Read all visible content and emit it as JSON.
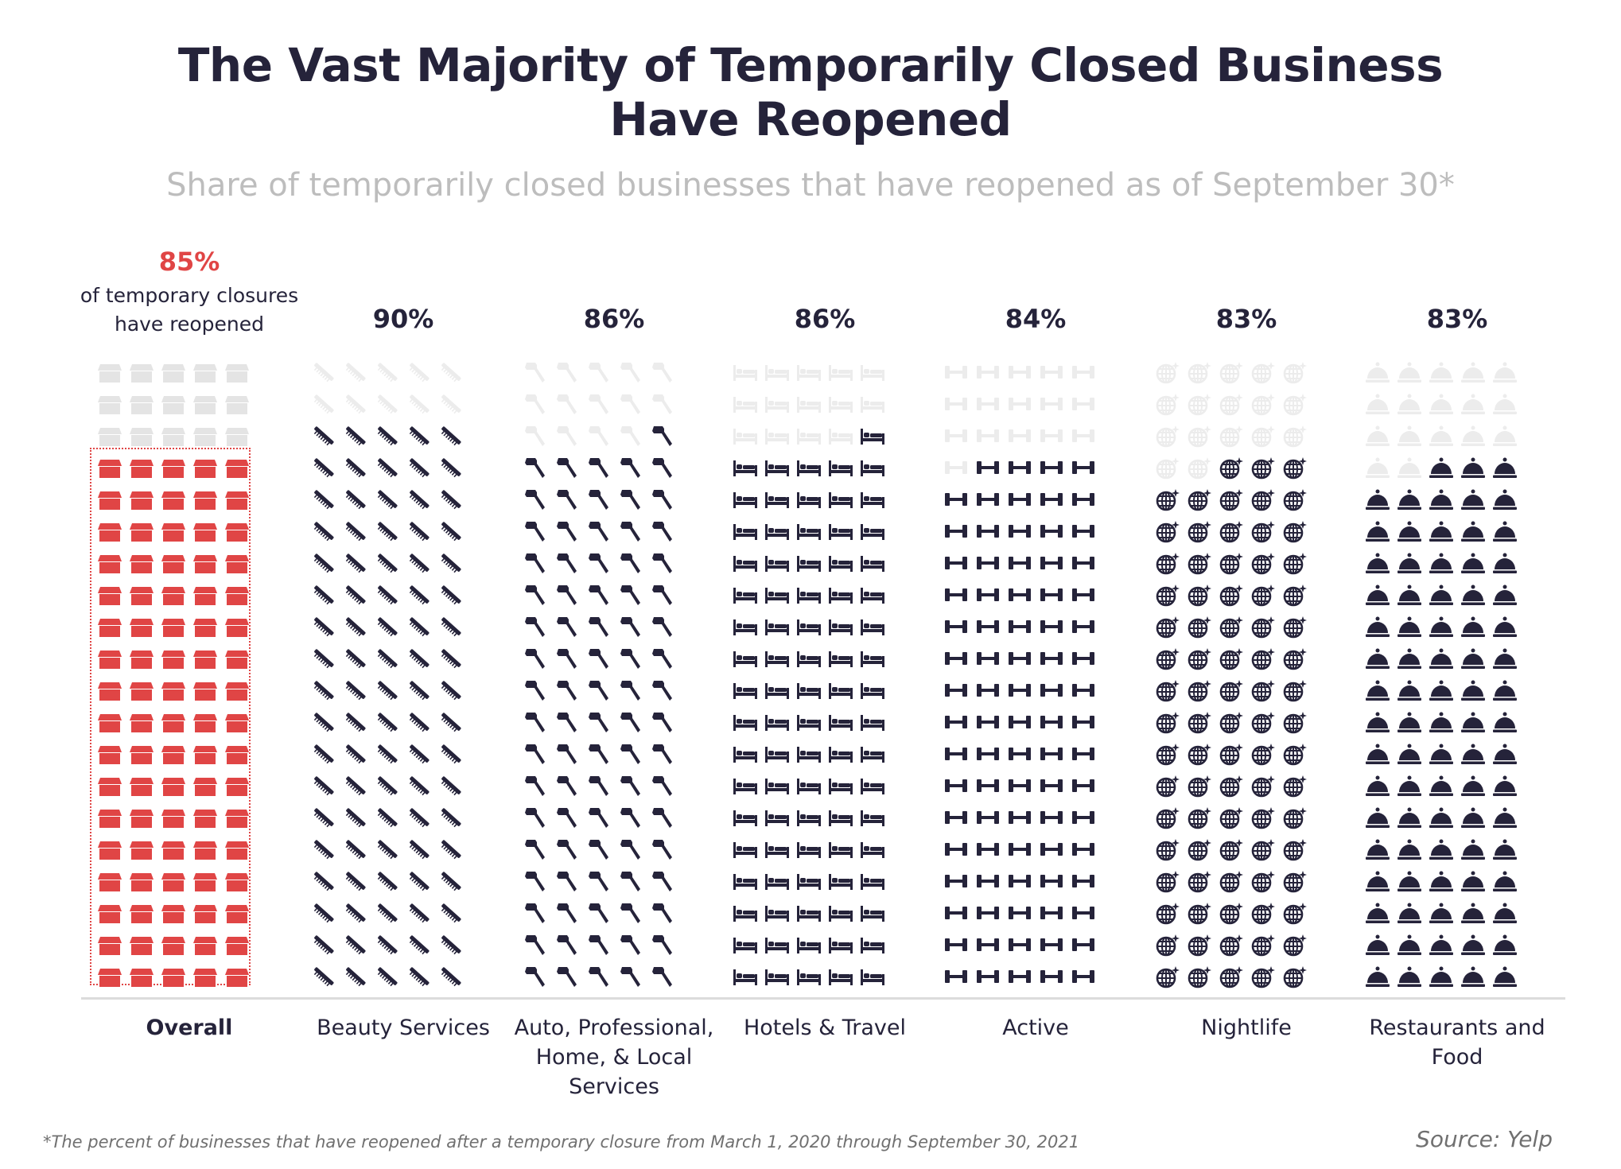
{
  "title_line1": "The Vast Majority of Temporarily Closed Business",
  "title_line2": "Have Reopened",
  "subtitle": "Share of temporarily closed businesses that have reopened as of September 30*",
  "overall": {
    "pct_label": "85%",
    "note_line1": "of temporary closures",
    "note_line2": "have reopened"
  },
  "colors": {
    "filled": "#25233a",
    "unfilled": "#ececec",
    "overall_filled": "#e04545",
    "overall_unfilled": "#e4e4e4",
    "title": "#25233a",
    "subtitle": "#bdbdbd"
  },
  "chart_data": {
    "type": "pictogram",
    "title": "The Vast Majority of Temporarily Closed Business Have Reopened",
    "subtitle": "Share of temporarily closed businesses that have reopened as of September 30*",
    "unit": "percent reopened",
    "icons_per_category": 100,
    "categories": [
      "Overall",
      "Beauty Services",
      "Auto, Professional, Home, & Local Services",
      "Hotels & Travel",
      "Active",
      "Nightlife",
      "Restaurants and Food"
    ],
    "values": [
      85,
      90,
      86,
      86,
      84,
      83,
      83
    ],
    "series": [
      {
        "key": "overall",
        "name": "Overall",
        "label_lines": [
          "Overall"
        ],
        "value": 85,
        "value_label": "85%",
        "icon": "storefront-icon",
        "highlight": true
      },
      {
        "key": "beauty",
        "name": "Beauty Services",
        "label_lines": [
          "Beauty Services"
        ],
        "value": 90,
        "value_label": "90%",
        "icon": "comb-icon"
      },
      {
        "key": "auto",
        "name": "Auto, Professional, Home, & Local Services",
        "label_lines": [
          "Auto, Professional,",
          "Home, & Local",
          "Services"
        ],
        "value": 86,
        "value_label": "86%",
        "icon": "hammer-icon"
      },
      {
        "key": "hotels",
        "name": "Hotels & Travel",
        "label_lines": [
          "Hotels & Travel"
        ],
        "value": 86,
        "value_label": "86%",
        "icon": "bed-icon"
      },
      {
        "key": "active",
        "name": "Active",
        "label_lines": [
          "Active"
        ],
        "value": 84,
        "value_label": "84%",
        "icon": "dumbbell-icon"
      },
      {
        "key": "nightlife",
        "name": "Nightlife",
        "label_lines": [
          "Nightlife"
        ],
        "value": 83,
        "value_label": "83%",
        "icon": "disco-ball-icon"
      },
      {
        "key": "restaurants",
        "name": "Restaurants and Food",
        "label_lines": [
          "Restaurants and",
          "Food"
        ],
        "value": 83,
        "value_label": "83%",
        "icon": "cloche-icon"
      }
    ]
  },
  "footnote": "*The percent of businesses that have reopened after a temporary closure from March 1, 2020 through September 30, 2021",
  "source": "Source: Yelp"
}
